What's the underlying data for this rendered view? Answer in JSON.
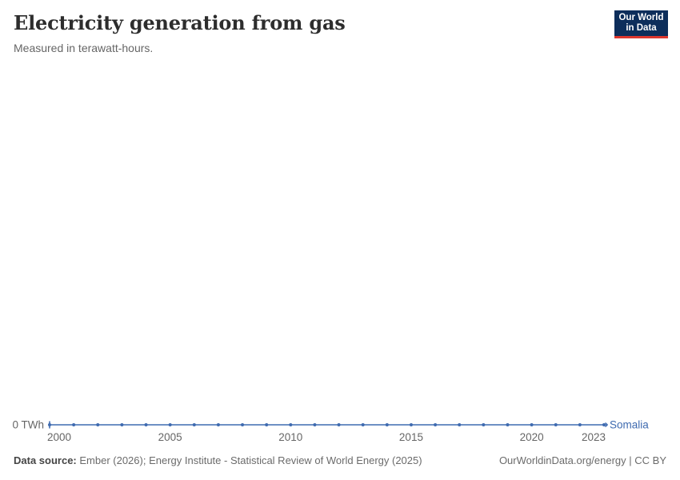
{
  "chart_data": {
    "type": "line",
    "title": "Electricity generation from gas",
    "subtitle": "Measured in terawatt-hours.",
    "xlabel": "",
    "ylabel": "terawatt-hours",
    "x": [
      2000,
      2001,
      2002,
      2003,
      2004,
      2005,
      2006,
      2007,
      2008,
      2009,
      2010,
      2011,
      2012,
      2013,
      2014,
      2015,
      2016,
      2017,
      2018,
      2019,
      2020,
      2021,
      2022,
      2023
    ],
    "series": [
      {
        "name": "Somalia",
        "color": "#3f6bb0",
        "values": [
          0,
          0,
          0,
          0,
          0,
          0,
          0,
          0,
          0,
          0,
          0,
          0,
          0,
          0,
          0,
          0,
          0,
          0,
          0,
          0,
          0,
          0,
          0,
          0
        ]
      }
    ],
    "x_ticks": [
      "2000",
      "2005",
      "2010",
      "2015",
      "2020",
      "2023"
    ],
    "y_tick_label": "0 TWh",
    "xlim": [
      2000,
      2023
    ],
    "ylim": [
      0,
      1
    ],
    "grid": false,
    "legend": "end-of-line-label"
  },
  "logo": {
    "line1": "Our World",
    "line2": "in Data",
    "bg_color": "#0d2e5b",
    "accent_color": "#dc372e"
  },
  "footer": {
    "source_label": "Data source:",
    "source_text": " Ember (2026); Energy Institute - Statistical Review of World Energy (2025)",
    "license": "OurWorldinData.org/energy | CC BY"
  }
}
